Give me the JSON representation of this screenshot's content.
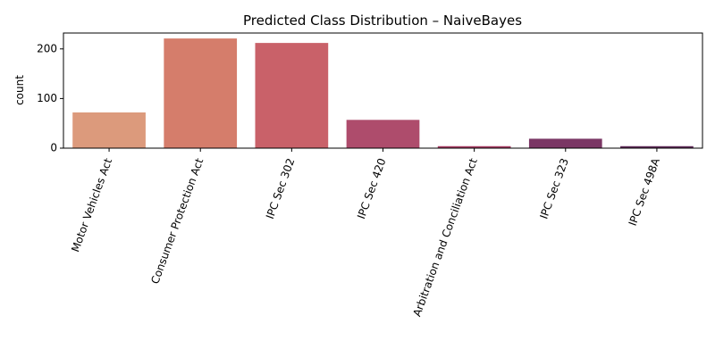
{
  "chart_data": {
    "type": "bar",
    "title": "Predicted Class Distribution – NaiveBayes",
    "xlabel": "",
    "ylabel": "count",
    "ylim": [
      0,
      232
    ],
    "yticks": [
      0,
      100,
      200
    ],
    "grid": false,
    "categories": [
      "Motor Vehicles Act",
      "Consumer Protection Act",
      "IPC Sec 302",
      "IPC Sec 420",
      "Arbitration and Conciliation Act",
      "IPC Sec 323",
      "IPC Sec 498A"
    ],
    "values": [
      72,
      221,
      212,
      57,
      4,
      19,
      4
    ],
    "colors": [
      "#dc9a7c",
      "#d57d6b",
      "#c96169",
      "#ae4c6c",
      "#a63b62",
      "#7a3664",
      "#5f2b59"
    ]
  }
}
